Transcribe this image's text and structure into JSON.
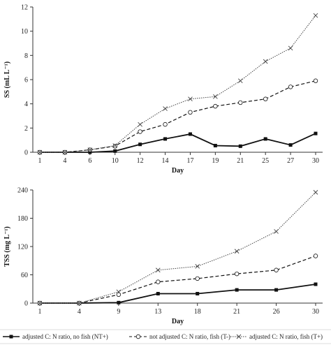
{
  "chart_data": [
    {
      "type": "line",
      "xlabel": "Day",
      "ylabel": "SS (mL L⁻¹)",
      "categories": [
        "1",
        "4",
        "6",
        "10",
        "12",
        "14",
        "17",
        "19",
        "21",
        "25",
        "27",
        "30"
      ],
      "ylim": [
        0,
        12
      ],
      "yticks": [
        0,
        2,
        4,
        6,
        8,
        10,
        12
      ],
      "grid": false,
      "series": [
        {
          "name": "adjusted C: N ratio, no fish (NT+)",
          "marker": "square",
          "dash": "solid",
          "values": [
            0,
            0,
            0,
            0.1,
            0.65,
            1.1,
            1.5,
            0.55,
            0.5,
            1.1,
            0.6,
            1.55
          ]
        },
        {
          "name": "not adjusted C: N ratio, fish (T-)",
          "marker": "circle",
          "dash": "dashed",
          "values": [
            0,
            0,
            0.2,
            0.5,
            1.7,
            2.3,
            3.3,
            3.8,
            4.1,
            4.4,
            5.4,
            5.9
          ]
        },
        {
          "name": "adjusted C: N ratio, fish (T+)",
          "marker": "x",
          "dash": "dotted",
          "values": [
            0,
            0,
            0.2,
            0.55,
            2.3,
            3.6,
            4.4,
            4.6,
            5.9,
            7.5,
            8.6,
            11.3
          ]
        }
      ]
    },
    {
      "type": "line",
      "xlabel": "Day",
      "ylabel": "TSS (mg L⁻¹)",
      "categories": [
        "1",
        "4",
        "9",
        "13",
        "18",
        "21",
        "26",
        "30"
      ],
      "ylim": [
        0,
        240
      ],
      "yticks": [
        0,
        60,
        120,
        180,
        240
      ],
      "grid": false,
      "series": [
        {
          "name": "adjusted C: N ratio, no fish (NT+)",
          "marker": "square",
          "dash": "solid",
          "values": [
            0,
            0,
            1,
            20,
            20,
            28,
            28,
            40
          ]
        },
        {
          "name": "not adjusted C: N ratio, fish (T-)",
          "marker": "circle",
          "dash": "dashed",
          "values": [
            0,
            0,
            18,
            45,
            52,
            62,
            70,
            100
          ]
        },
        {
          "name": "adjusted C: N ratio, fish (T+)",
          "marker": "x",
          "dash": "dotted",
          "values": [
            0,
            0,
            24,
            70,
            78,
            110,
            152,
            235
          ]
        }
      ]
    }
  ],
  "legend": {
    "placement": "bottom",
    "items": [
      {
        "label": "adjusted C: N ratio, no fish (NT+)",
        "marker": "square",
        "dash": "solid"
      },
      {
        "label": "not adjusted C: N ratio, fish (T-)",
        "marker": "circle",
        "dash": "dashed"
      },
      {
        "label": "adjusted C: N ratio, fish (T+)",
        "marker": "x",
        "dash": "dotted"
      }
    ]
  },
  "colors": {
    "line": "#111111",
    "axis": "#333333"
  }
}
